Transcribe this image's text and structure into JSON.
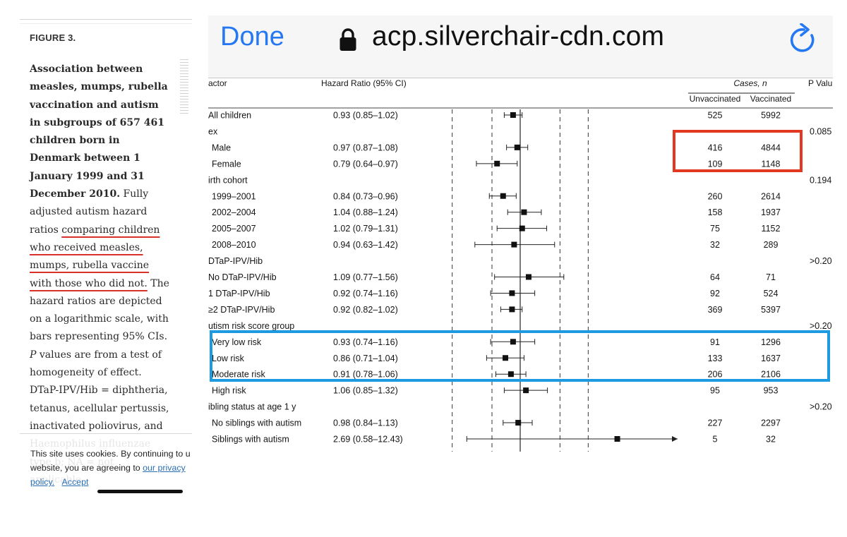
{
  "article": {
    "figure_label": "FIGURE 3.",
    "caption_bold_parts": [
      "Association between measles, mumps, rubella vaccination and autism in subgroups of 657 461 children born in Denmark between 1 January 1999 and 31 December 2010."
    ],
    "caption_part1": "Fully adjusted autism hazard ratios ",
    "caption_underlined": "comparing children who received measles, mumps, rubella vaccine with those who did not.",
    "caption_part2": " The hazard ratios are depicted on a logarithmic scale, with bars representing 95% CIs. ",
    "caption_p": "P",
    "caption_part3": " values are from a test of homogeneity of effect. DTaP-IPV/Hib = diphtheria, tetanus, acellular pertussis, inactivated poliovirus, and Haemophilus influenzae type b; NA = not applicable."
  },
  "cookie_banner": {
    "line1": "This site uses cookies. By continuing to u",
    "line2_prefix": "website, you are agreeing to ",
    "privacy_link_a": "our privacy",
    "privacy_link_b": "policy.",
    "accept_label": "Accept"
  },
  "browser": {
    "done_label": "Done",
    "url": "acp.silverchair-cdn.com",
    "lock_icon": "lock-icon",
    "reload_icon": "reload-icon",
    "accent_color": "#2478f3"
  },
  "highlights": {
    "red_box_color": "#e23a22",
    "blue_box_color": "#1e9be0"
  },
  "chart_data": {
    "type": "forest",
    "scale": "log",
    "columns": {
      "factor": "actor",
      "hazard_ratio": "Hazard Ratio (95% CI)",
      "cases": "Cases, n",
      "unvaccinated": "Unvaccinated",
      "vaccinated": "Vaccinated",
      "p_value": "P Valu"
    },
    "rows": [
      {
        "label": "All children",
        "kind": "item",
        "indent": false,
        "hr_text": "0.93 (0.85–1.02)",
        "hr": 0.93,
        "lo": 0.85,
        "hi": 1.02,
        "unvac": "525",
        "vac": "5992",
        "p": ""
      },
      {
        "label": "ex",
        "kind": "group",
        "p": "0.085"
      },
      {
        "label": "Male",
        "kind": "item",
        "indent": true,
        "hr_text": "0.97 (0.87–1.08)",
        "hr": 0.97,
        "lo": 0.87,
        "hi": 1.08,
        "unvac": "416",
        "vac": "4844",
        "p": ""
      },
      {
        "label": "Female",
        "kind": "item",
        "indent": true,
        "hr_text": "0.79 (0.64–0.97)",
        "hr": 0.79,
        "lo": 0.64,
        "hi": 0.97,
        "unvac": "109",
        "vac": "1148",
        "p": ""
      },
      {
        "label": "irth cohort",
        "kind": "group",
        "p": "0.194"
      },
      {
        "label": "1999–2001",
        "kind": "item",
        "indent": true,
        "hr_text": "0.84 (0.73–0.96)",
        "hr": 0.84,
        "lo": 0.73,
        "hi": 0.96,
        "unvac": "260",
        "vac": "2614",
        "p": ""
      },
      {
        "label": "2002–2004",
        "kind": "item",
        "indent": true,
        "hr_text": "1.04 (0.88–1.24)",
        "hr": 1.04,
        "lo": 0.88,
        "hi": 1.24,
        "unvac": "158",
        "vac": "1937",
        "p": ""
      },
      {
        "label": "2005–2007",
        "kind": "item",
        "indent": true,
        "hr_text": "1.02 (0.79–1.31)",
        "hr": 1.02,
        "lo": 0.79,
        "hi": 1.31,
        "unvac": "75",
        "vac": "1152",
        "p": ""
      },
      {
        "label": "2008–2010",
        "kind": "item",
        "indent": true,
        "hr_text": "0.94 (0.63–1.42)",
        "hr": 0.94,
        "lo": 0.63,
        "hi": 1.42,
        "unvac": "32",
        "vac": "289",
        "p": ""
      },
      {
        "label": "DTaP-IPV/Hib",
        "kind": "group",
        "p": ">0.20"
      },
      {
        "label": "No DTaP-IPV/Hib",
        "kind": "item",
        "indent": false,
        "hr_text": "1.09 (0.77–1.56)",
        "hr": 1.09,
        "lo": 0.77,
        "hi": 1.56,
        "unvac": "64",
        "vac": "71",
        "p": ""
      },
      {
        "label": "1 DTaP-IPV/Hib",
        "kind": "item",
        "indent": false,
        "hr_text": "0.92 (0.74–1.16)",
        "hr": 0.92,
        "lo": 0.74,
        "hi": 1.16,
        "unvac": "92",
        "vac": "524",
        "p": ""
      },
      {
        "label": "≥2 DTaP-IPV/Hib",
        "kind": "item",
        "indent": false,
        "hr_text": "0.92 (0.82–1.02)",
        "hr": 0.92,
        "lo": 0.82,
        "hi": 1.02,
        "unvac": "369",
        "vac": "5397",
        "p": ""
      },
      {
        "label": "utism risk score group",
        "kind": "group",
        "p": ">0.20"
      },
      {
        "label": "Very low risk",
        "kind": "item",
        "indent": true,
        "hr_text": "0.93 (0.74–1.16)",
        "hr": 0.93,
        "lo": 0.74,
        "hi": 1.16,
        "unvac": "91",
        "vac": "1296",
        "p": ""
      },
      {
        "label": "Low risk",
        "kind": "item",
        "indent": true,
        "hr_text": "0.86 (0.71–1.04)",
        "hr": 0.86,
        "lo": 0.71,
        "hi": 1.04,
        "unvac": "133",
        "vac": "1637",
        "p": ""
      },
      {
        "label": "Moderate risk",
        "kind": "item",
        "indent": true,
        "hr_text": "0.91 (0.78–1.06)",
        "hr": 0.91,
        "lo": 0.78,
        "hi": 1.06,
        "unvac": "206",
        "vac": "2106",
        "p": ""
      },
      {
        "label": "High risk",
        "kind": "item",
        "indent": true,
        "hr_text": "1.06 (0.85–1.32)",
        "hr": 1.06,
        "lo": 0.85,
        "hi": 1.32,
        "unvac": "95",
        "vac": "953",
        "p": ""
      },
      {
        "label": "ibling status at age 1 y",
        "kind": "group",
        "p": ">0.20"
      },
      {
        "label": "No siblings with autism",
        "kind": "item",
        "indent": true,
        "hr_text": "0.98 (0.84–1.13)",
        "hr": 0.98,
        "lo": 0.84,
        "hi": 1.13,
        "unvac": "227",
        "vac": "2297",
        "p": ""
      },
      {
        "label": "Siblings with autism",
        "kind": "item",
        "indent": true,
        "hr_text": "2.69 (0.58–12.43)",
        "hr": 2.69,
        "lo": 0.58,
        "hi": 12.43,
        "unvac": "5",
        "vac": "32",
        "p": "",
        "arrow": true
      }
    ],
    "reference_line": 1.0,
    "dashed_reference_lines": [
      0.5,
      0.75,
      1.5,
      2.0
    ],
    "x_range": [
      0.5,
      2.25
    ]
  }
}
